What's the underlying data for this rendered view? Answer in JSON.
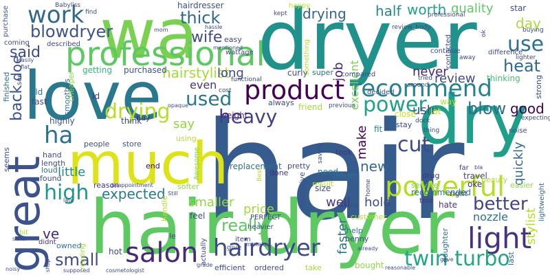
{
  "palette": {
    "viridis_purple": "#440154",
    "viridis_indigo": "#414487",
    "viridis_blue": "#31688e",
    "viridis_teal": "#21918c",
    "viridis_green": "#35b779",
    "viridis_lime": "#90d743",
    "viridis_yellow": "#fde725",
    "background": "#ffffff"
  },
  "words": [
    {
      "text": "hair",
      "color": "#365c8d"
    },
    {
      "text": "dryer",
      "color": "#21918c"
    },
    {
      "text": "hair dryer",
      "color": "#5ec962"
    },
    {
      "text": "wa",
      "color": "#7ad151"
    },
    {
      "text": "love",
      "color": "#2a788e"
    },
    {
      "text": "great",
      "color": "#3b528b"
    },
    {
      "text": "much",
      "color": "#dde318"
    },
    {
      "text": "dry",
      "color": "#1f9e89"
    },
    {
      "text": "professional",
      "color": "#5ec962"
    },
    {
      "text": "product",
      "color": "#440154"
    },
    {
      "text": "recommend",
      "color": "#26828e"
    },
    {
      "text": "powerful",
      "color": "#b5de2b"
    },
    {
      "text": "light",
      "color": "#46327e"
    },
    {
      "text": "salon",
      "color": "#482878"
    },
    {
      "text": "hairdryer",
      "color": "#3e4989"
    },
    {
      "text": "work",
      "color": "#31688e"
    },
    {
      "text": "power",
      "color": "#1fa187"
    },
    {
      "text": "heavy",
      "color": "#433e85"
    },
    {
      "text": "ha",
      "color": "#2c728e"
    },
    {
      "text": "drying",
      "color": "#b5de2b"
    },
    {
      "text": "cut",
      "color": "#3e4a89"
    },
    {
      "text": "twin turbo",
      "color": "#22a785"
    },
    {
      "text": "used",
      "color": "#2a788e"
    },
    {
      "text": "use",
      "color": "#2c728e"
    },
    {
      "text": "heat",
      "color": "#31688e"
    },
    {
      "text": "blowdryer",
      "color": "#3b528b"
    },
    {
      "text": "high",
      "color": "#1f988b"
    },
    {
      "text": "small",
      "color": "#3e4a89"
    },
    {
      "text": "really",
      "color": "#5ec962"
    },
    {
      "text": "better",
      "color": "#414487"
    },
    {
      "text": "blow",
      "color": "#2e6e8e"
    },
    {
      "text": "said",
      "color": "#3e4989"
    },
    {
      "text": "thick",
      "color": "#31688e"
    },
    {
      "text": "wife",
      "color": "#3e4a89"
    },
    {
      "text": "hairstylist",
      "color": "#a5db36"
    },
    {
      "text": "back",
      "color": "#3b528b"
    },
    {
      "text": "expected",
      "color": "#2a788e"
    },
    {
      "text": "quality",
      "color": "#5ec962"
    },
    {
      "text": "drying",
      "color": "#33638d"
    },
    {
      "text": "half",
      "color": "#23898e"
    },
    {
      "text": "worth",
      "color": "#1fa187"
    },
    {
      "text": "day",
      "color": "#addc30"
    },
    {
      "text": "review",
      "color": "#3e4989"
    },
    {
      "text": "never",
      "color": "#482475"
    },
    {
      "text": "good",
      "color": "#440154"
    },
    {
      "text": "new",
      "color": "#31688e"
    },
    {
      "text": "ush",
      "color": "#3b528b"
    },
    {
      "text": "say",
      "color": "#90d743"
    },
    {
      "text": "even",
      "color": "#46337e"
    },
    {
      "text": "long",
      "color": "#3e4989"
    },
    {
      "text": "price",
      "color": "#a5db36"
    },
    {
      "text": "smaller",
      "color": "#90d743"
    },
    {
      "text": "hold",
      "color": "#3e4989"
    },
    {
      "text": "well",
      "color": "#453781"
    },
    {
      "text": "nozzle",
      "color": "#2c728e"
    },
    {
      "text": "little",
      "color": "#24868e"
    },
    {
      "text": "job",
      "color": "#482475"
    },
    {
      "text": "make",
      "color": "#440154"
    },
    {
      "text": "doe",
      "color": "#3b528b"
    },
    {
      "text": "quickly",
      "color": "#31688e"
    },
    {
      "text": "stylist",
      "color": "#b5de2b"
    },
    {
      "text": "faster",
      "color": "#2c728e"
    },
    {
      "text": "excellent",
      "color": "#7ad151"
    },
    {
      "text": "ve",
      "color": "#482878"
    },
    {
      "text": "hairdresser",
      "color": "#3b528b"
    },
    {
      "text": "star",
      "color": "#3e4989"
    },
    {
      "text": "curly",
      "color": "#3e4989"
    },
    {
      "text": "super",
      "color": "#2c728e"
    },
    {
      "text": "friend",
      "color": "#a5db36"
    },
    {
      "text": "fit",
      "color": "#24868e"
    },
    {
      "text": "replacement",
      "color": "#2e6e8e"
    },
    {
      "text": "pretty",
      "color": "#3e4989"
    },
    {
      "text": "took",
      "color": "#46327e"
    },
    {
      "text": "recommended",
      "color": "#2a788e"
    },
    {
      "text": "size",
      "color": "#3e4989"
    },
    {
      "text": "return",
      "color": "#2c728e"
    },
    {
      "text": "lot",
      "color": "#cae11f"
    },
    {
      "text": "travel",
      "color": "#414487"
    },
    {
      "text": "oke",
      "color": "#46327e"
    },
    {
      "text": "hate",
      "color": "#46327e"
    },
    {
      "text": "weight",
      "color": "#482878"
    },
    {
      "text": "thinking",
      "color": "#44bf70"
    },
    {
      "text": "cheaper",
      "color": "#90d743"
    },
    {
      "text": "old",
      "color": "#2c728e"
    },
    {
      "text": "fast",
      "color": "#414487"
    },
    {
      "text": "Id",
      "color": "#453781"
    },
    {
      "text": "purchased",
      "color": "#3b528b"
    },
    {
      "text": "getting",
      "color": "#35b779"
    },
    {
      "text": "smoothes",
      "color": "#2a788e"
    },
    {
      "text": "finished",
      "color": "#2c728e"
    },
    {
      "text": "highly",
      "color": "#3b528b"
    },
    {
      "text": "think",
      "color": "#3e4989"
    },
    {
      "text": "buy",
      "color": "#46327e"
    },
    {
      "text": "using",
      "color": "#b5de2b"
    },
    {
      "text": "store",
      "color": "#3b528b"
    },
    {
      "text": "people",
      "color": "#3e4a89"
    },
    {
      "text": "hand",
      "color": "#3e4989"
    },
    {
      "text": "length",
      "color": "#3e4a89"
    },
    {
      "text": "loud",
      "color": "#2c728e"
    },
    {
      "text": "found",
      "color": "#3e4989"
    },
    {
      "text": "end",
      "color": "#440154"
    },
    {
      "text": "reason",
      "color": "#46327e"
    },
    {
      "text": "softer",
      "color": "#8fd744"
    },
    {
      "text": "handle",
      "color": "#b5de2b"
    },
    {
      "text": "feel",
      "color": "#3e4989"
    },
    {
      "text": "le",
      "color": "#414487"
    },
    {
      "text": "hot",
      "color": "#3e4989"
    },
    {
      "text": "owned",
      "color": "#2c728e"
    },
    {
      "text": "reading",
      "color": "#a5db36"
    },
    {
      "text": "actually",
      "color": "#3e4989"
    },
    {
      "text": "efficient",
      "color": "#3e4989"
    },
    {
      "text": "ordered",
      "color": "#3e4989"
    },
    {
      "text": "bought",
      "color": "#90d743"
    },
    {
      "text": "take",
      "color": "#a5db36"
    },
    {
      "text": "help",
      "color": "#2c728e"
    },
    {
      "text": "benny",
      "color": "#3e4989"
    },
    {
      "text": "daughter",
      "color": "#2c728e"
    },
    {
      "text": "last",
      "color": "#31688e"
    },
    {
      "text": "seems",
      "color": "#3b528b"
    },
    {
      "text": "didnt",
      "color": "#46327e"
    },
    {
      "text": "bit",
      "color": "#a5db36"
    },
    {
      "text": "item",
      "color": "#3e4989"
    },
    {
      "text": "heavier",
      "color": "#3e4989"
    },
    {
      "text": "give",
      "color": "#3e4989"
    },
    {
      "text": "expensive",
      "color": "#3b528b"
    },
    {
      "text": "Awesome",
      "color": "#7ad151"
    },
    {
      "text": "Best",
      "color": "#b5de2b"
    },
    {
      "text": "PERFECT",
      "color": "#3e4989"
    },
    {
      "text": "done",
      "color": "#46327e"
    },
    {
      "text": "need",
      "color": "#2c728e"
    },
    {
      "text": "result",
      "color": "#b5de2b"
    },
    {
      "text": "customer",
      "color": "#b5de2b"
    },
    {
      "text": "service",
      "color": "#7ad151"
    },
    {
      "text": "drug",
      "color": "#46327e"
    },
    {
      "text": "right",
      "color": "#3e4989"
    },
    {
      "text": "easier",
      "color": "#90d743"
    },
    {
      "text": "told",
      "color": "#46327e"
    },
    {
      "text": "far",
      "color": "#46327e"
    },
    {
      "text": "beauty",
      "color": "#b5de2b"
    },
    {
      "text": "noise",
      "color": "#3e4989"
    },
    {
      "text": "strong",
      "color": "#3e4989"
    },
    {
      "text": "lightweight",
      "color": "#31688e"
    },
    {
      "text": "way",
      "color": "#b5de2b"
    },
    {
      "text": "always",
      "color": "#3e4989"
    },
    {
      "text": "close",
      "color": "#cae11f"
    },
    {
      "text": "stay",
      "color": "#3e4989"
    },
    {
      "text": "compared",
      "color": "#3e4989"
    },
    {
      "text": "decided",
      "color": "#3e4989"
    },
    {
      "text": "something",
      "color": "#b5de2b"
    },
    {
      "text": "happy",
      "color": "#b5de2b"
    },
    {
      "text": "easy",
      "color": "#3e4989"
    },
    {
      "text": "wattage",
      "color": "#3e4989"
    },
    {
      "text": "functional",
      "color": "#3e4989"
    },
    {
      "text": "continue",
      "color": "#3e4989"
    },
    {
      "text": "difference",
      "color": "#3e4989"
    },
    {
      "text": "contacted",
      "color": "#3e4989"
    },
    {
      "text": "Babyliss",
      "color": "#3e4989"
    },
    {
      "text": "purchase",
      "color": "#3b528b"
    },
    {
      "text": "coming",
      "color": "#3e4989"
    },
    {
      "text": "described",
      "color": "#3e4989"
    },
    {
      "text": "see",
      "color": "#3e4989"
    },
    {
      "text": "find",
      "color": "#3e4989"
    },
    {
      "text": "review_body",
      "color": "#3e4989"
    },
    {
      "text": "buying",
      "color": "#3e4989"
    },
    {
      "text": "home",
      "color": "#3e4989"
    },
    {
      "text": "saving",
      "color": "#3e4989"
    },
    {
      "text": "tried",
      "color": "#3e4989"
    },
    {
      "text": "around",
      "color": "#3e4989"
    },
    {
      "text": "kept",
      "color": "#3e4989"
    },
    {
      "text": "cost",
      "color": "#3e4989"
    },
    {
      "text": "mom",
      "color": "#3e4989"
    },
    {
      "text": "previous",
      "color": "#3e4989"
    },
    {
      "text": "dock",
      "color": "#3e4989"
    },
    {
      "text": "thing",
      "color": "#3e4989"
    },
    {
      "text": "away",
      "color": "#3e4989"
    },
    {
      "text": "lighter",
      "color": "#3e4989"
    },
    {
      "text": "expecting",
      "color": "#3e4989"
    },
    {
      "text": "professional",
      "color": "#3e4989"
    },
    {
      "text": "mistake",
      "color": "#3e4989"
    },
    {
      "text": "opaque",
      "color": "#3e4989"
    },
    {
      "text": "hassle",
      "color": "#3e4989"
    },
    {
      "text": "ok",
      "color": "#3e4989"
    },
    {
      "text": "mentioned",
      "color": "#3e4989"
    },
    {
      "text": "easily",
      "color": "#3e4989"
    },
    {
      "text": "flat",
      "color": "#3e4989"
    },
    {
      "text": "disappointment",
      "color": "#3e4989"
    },
    {
      "text": "Still",
      "color": "#3e4989"
    },
    {
      "text": "late",
      "color": "#3e4989"
    },
    {
      "text": "cosmetologist",
      "color": "#3e4989"
    },
    {
      "text": "supposed",
      "color": "#3e4989"
    },
    {
      "text": "sound",
      "color": "#3e4989"
    },
    {
      "text": "grade",
      "color": "#3e4989"
    },
    {
      "text": "reasonable",
      "color": "#3e4989"
    },
    {
      "text": "gave",
      "color": "#3e4989"
    },
    {
      "text": "already",
      "color": "#3e4989"
    },
    {
      "text": "noisy",
      "color": "#3e4989"
    },
    {
      "text": "shop",
      "color": "#3e4989"
    },
    {
      "text": "sister",
      "color": "#3e4989"
    },
    {
      "text": "bla",
      "color": "#3e4989"
    }
  ]
}
